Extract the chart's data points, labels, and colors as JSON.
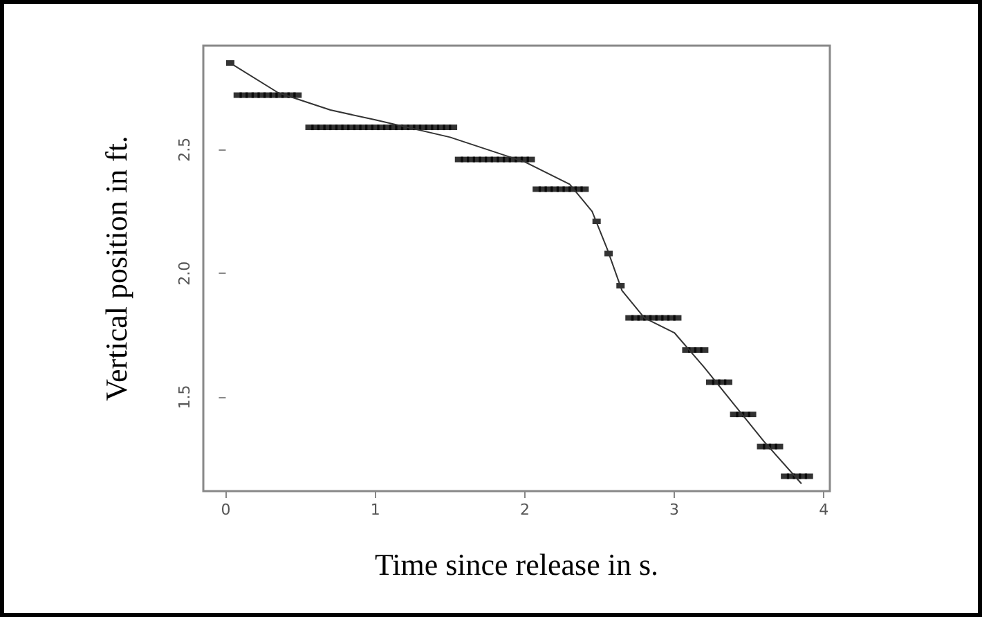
{
  "chart_data": {
    "type": "scatter",
    "xlabel": "Time since release in s.",
    "ylabel": "Vertical position in ft.",
    "xlim": [
      -0.15,
      4.04
    ],
    "ylim": [
      1.12,
      2.92
    ],
    "xticks": [
      0,
      1,
      2,
      3,
      4
    ],
    "yticks": [
      {
        "value": 1.5,
        "label": "1.5"
      },
      {
        "value": 2,
        "label": "2.0"
      },
      {
        "value": 2.5,
        "label": "2.5"
      }
    ],
    "grid": false,
    "series": [
      {
        "color": "#000000",
        "marker": "square",
        "x": [
          0.03,
          0.08,
          0.12,
          0.16,
          0.2,
          0.24,
          0.28,
          0.32,
          0.36,
          0.4,
          0.44,
          0.48,
          0.56,
          0.6,
          0.64,
          0.68,
          0.72,
          0.76,
          0.8,
          0.84,
          0.88,
          0.92,
          0.96,
          1.0,
          1.04,
          1.08,
          1.12,
          1.16,
          1.2,
          1.24,
          1.28,
          1.32,
          1.36,
          1.4,
          1.44,
          1.48,
          1.52,
          1.56,
          1.6,
          1.64,
          1.68,
          1.72,
          1.76,
          1.8,
          1.84,
          1.88,
          1.92,
          1.96,
          2.0,
          2.04,
          2.08,
          2.12,
          2.16,
          2.2,
          2.24,
          2.28,
          2.32,
          2.36,
          2.4,
          2.48,
          2.56,
          2.64,
          2.7,
          2.74,
          2.78,
          2.82,
          2.86,
          2.9,
          2.94,
          2.98,
          3.02,
          3.08,
          3.12,
          3.16,
          3.2,
          3.24,
          3.28,
          3.32,
          3.36,
          3.4,
          3.44,
          3.48,
          3.52,
          3.58,
          3.62,
          3.66,
          3.7,
          3.74,
          3.78,
          3.82,
          3.86,
          3.9
        ],
        "values": [
          2.85,
          2.72,
          2.72,
          2.72,
          2.72,
          2.72,
          2.72,
          2.72,
          2.72,
          2.72,
          2.72,
          2.72,
          2.59,
          2.59,
          2.59,
          2.59,
          2.59,
          2.59,
          2.59,
          2.59,
          2.59,
          2.59,
          2.59,
          2.59,
          2.59,
          2.59,
          2.59,
          2.59,
          2.59,
          2.59,
          2.59,
          2.59,
          2.59,
          2.59,
          2.59,
          2.59,
          2.59,
          2.46,
          2.46,
          2.46,
          2.46,
          2.46,
          2.46,
          2.46,
          2.46,
          2.46,
          2.46,
          2.46,
          2.46,
          2.46,
          2.34,
          2.34,
          2.34,
          2.34,
          2.34,
          2.34,
          2.34,
          2.34,
          2.34,
          2.21,
          2.08,
          1.95,
          1.82,
          1.82,
          1.82,
          1.82,
          1.82,
          1.82,
          1.82,
          1.82,
          1.82,
          1.69,
          1.69,
          1.69,
          1.69,
          1.56,
          1.56,
          1.56,
          1.56,
          1.43,
          1.43,
          1.43,
          1.43,
          1.3,
          1.3,
          1.3,
          1.3,
          1.18,
          1.18,
          1.18,
          1.18,
          1.18
        ]
      },
      {
        "type": "line",
        "color": "#333333",
        "marker": "none",
        "line_style": "solid",
        "x": [
          0.03,
          0.35,
          0.7,
          1.0,
          1.5,
          2.0,
          2.3,
          2.45,
          2.55,
          2.65,
          2.8,
          3.0,
          3.2,
          3.4,
          3.6,
          3.85
        ],
        "values": [
          2.85,
          2.73,
          2.66,
          2.62,
          2.55,
          2.45,
          2.36,
          2.25,
          2.1,
          1.93,
          1.82,
          1.76,
          1.62,
          1.47,
          1.32,
          1.15
        ]
      }
    ]
  }
}
